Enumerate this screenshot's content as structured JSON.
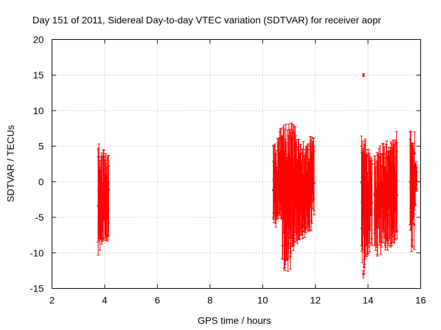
{
  "chart_data": {
    "type": "scatter",
    "title": "Day 151 of 2011, Sidereal Day-to-day VTEC variation (SDTVAR) for receiver aopr",
    "xlabel": "GPS time / hours",
    "ylabel": "SDTVAR / TECUs",
    "xlim": [
      2,
      16
    ],
    "ylim": [
      -15,
      20
    ],
    "xticks": [
      "2",
      "4",
      "6",
      "8",
      "10",
      "12",
      "14",
      "16"
    ],
    "yticks": [
      "-15",
      "-10",
      "-5",
      "0",
      "5",
      "10",
      "15",
      "20"
    ],
    "grid": true,
    "series_color": "#ff0000",
    "clusters": [
      {
        "name": "cluster-1",
        "x_start": 3.75,
        "x_end": 4.15,
        "y_low": [
          -8.5,
          -8.0,
          -7.8,
          -7.6,
          -7.5
        ],
        "y_high": [
          4.5,
          3.5,
          3.0,
          2.5,
          2.2
        ]
      },
      {
        "name": "cluster-2",
        "x_start": 10.4,
        "x_end": 10.75,
        "y_low": [
          -5.0,
          -5.2,
          -4.5,
          -4.0,
          -4.5
        ],
        "y_high": [
          5.0,
          4.0,
          5.5,
          6.0,
          6.2
        ]
      },
      {
        "name": "cluster-3",
        "x_start": 10.75,
        "x_end": 11.2,
        "y_low": [
          -9.0,
          -11.0,
          -10.0,
          -8.0,
          -7.5
        ],
        "y_high": [
          6.5,
          6.0,
          6.5,
          6.2,
          6.0
        ]
      },
      {
        "name": "cluster-4",
        "x_start": 11.2,
        "x_end": 11.5,
        "y_low": [
          -8.0,
          -7.5,
          -7.0,
          -6.5,
          -6.0
        ],
        "y_high": [
          6.0,
          5.5,
          4.5,
          4.0,
          3.8
        ]
      },
      {
        "name": "cluster-5",
        "x_start": 11.5,
        "x_end": 11.95,
        "y_low": [
          -7.0,
          -6.5,
          -6.0,
          -5.5,
          -4.0
        ],
        "y_high": [
          4.5,
          4.0,
          4.5,
          5.0,
          5.0
        ]
      },
      {
        "name": "cluster-6",
        "x_start": 13.75,
        "x_end": 14.15,
        "y_low": [
          -9.0,
          -10.0,
          -9.0,
          -8.5,
          -8.0
        ],
        "y_high": [
          5.0,
          4.0,
          3.5,
          3.0,
          2.5
        ]
      },
      {
        "name": "cluster-7",
        "x_start": 14.25,
        "x_end": 15.1,
        "y_low": [
          -9.0,
          -8.5,
          -8.0,
          -7.5,
          -7.0
        ],
        "y_high": [
          2.5,
          3.5,
          4.0,
          4.0,
          5.5
        ]
      },
      {
        "name": "cluster-8",
        "x_start": 15.6,
        "x_end": 15.85,
        "y_low": [
          -6.0,
          -9.0,
          -5.0,
          -3.0,
          -1.0
        ],
        "y_high": [
          7.0,
          5.0,
          4.0,
          2.5,
          2.0
        ]
      }
    ],
    "highlights": [
      {
        "x": 13.83,
        "y": 15.0,
        "err": 0.2
      },
      {
        "x": 13.82,
        "y": -13.0,
        "err": 0.5
      },
      {
        "x": 13.85,
        "y": -12.0,
        "err": 1.0
      },
      {
        "x": 11.05,
        "y": -10.5,
        "err": 1.8
      },
      {
        "x": 13.9,
        "y": 2.0,
        "err": 4.0
      },
      {
        "x": 15.75,
        "y": -6.0,
        "err": 3.5
      },
      {
        "x": 15.77,
        "y": 4.0,
        "err": 3.0
      },
      {
        "x": 15.72,
        "y": -3.0,
        "err": 2.0
      },
      {
        "x": 15.8,
        "y": 1.0,
        "err": 1.5
      },
      {
        "x": 3.78,
        "y": -6.2,
        "err": 1.8
      }
    ]
  }
}
